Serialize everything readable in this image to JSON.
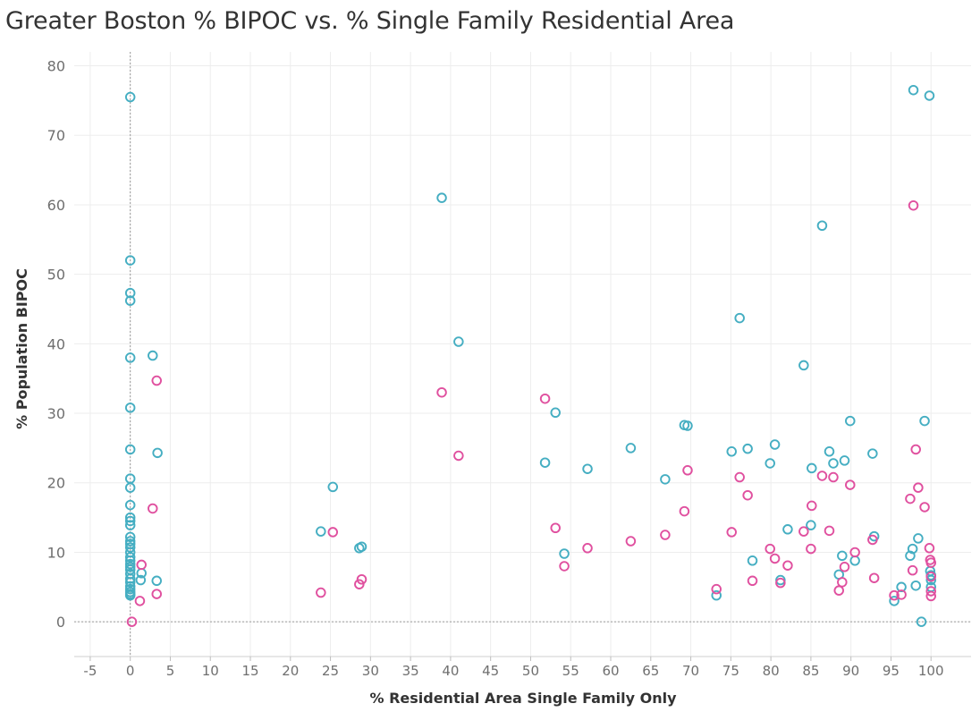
{
  "chart_data": {
    "type": "scatter",
    "title": "Greater Boston % BIPOC vs. % Single Family Residential Area",
    "xlabel": "% Residential Area Single Family Only",
    "ylabel": "% Population BIPOC",
    "xlim": [
      -7,
      105
    ],
    "ylim": [
      -5,
      82
    ],
    "xticks": [
      -5,
      0,
      5,
      10,
      15,
      20,
      25,
      30,
      35,
      40,
      45,
      50,
      55,
      60,
      65,
      70,
      75,
      80,
      85,
      90,
      95,
      100
    ],
    "yticks": [
      0,
      10,
      20,
      30,
      40,
      50,
      60,
      70,
      80
    ],
    "grid": true,
    "legend": "none",
    "series": [
      {
        "color": "#45aec2",
        "points": [
          [
            0,
            75.5
          ],
          [
            0,
            52
          ],
          [
            0,
            47.3
          ],
          [
            0,
            46.2
          ],
          [
            0,
            38
          ],
          [
            0,
            30.8
          ],
          [
            0,
            24.8
          ],
          [
            0,
            20.6
          ],
          [
            0,
            19.3
          ],
          [
            0,
            16.8
          ],
          [
            0,
            15
          ],
          [
            0,
            14.5
          ],
          [
            0,
            13.9
          ],
          [
            0,
            12.2
          ],
          [
            0,
            11.6
          ],
          [
            0,
            11.2
          ],
          [
            0,
            10.7
          ],
          [
            0,
            10
          ],
          [
            0,
            9.3
          ],
          [
            0,
            8.8
          ],
          [
            0,
            8.3
          ],
          [
            0,
            7.9
          ],
          [
            0,
            7.5
          ],
          [
            0,
            6.9
          ],
          [
            0,
            6.2
          ],
          [
            0,
            5.7
          ],
          [
            0,
            5.1
          ],
          [
            0,
            4.7
          ],
          [
            0,
            4.3
          ],
          [
            0,
            4
          ],
          [
            0,
            3.8
          ],
          [
            1.3,
            6
          ],
          [
            1.4,
            7
          ],
          [
            2.8,
            38.3
          ],
          [
            3.4,
            24.3
          ],
          [
            3.3,
            5.9
          ],
          [
            23.8,
            13
          ],
          [
            25.3,
            19.4
          ],
          [
            28.6,
            10.6
          ],
          [
            28.9,
            10.8
          ],
          [
            38.9,
            61
          ],
          [
            41,
            40.3
          ],
          [
            51.8,
            22.9
          ],
          [
            53.1,
            30.1
          ],
          [
            54.2,
            9.8
          ],
          [
            57.1,
            22
          ],
          [
            62.5,
            25
          ],
          [
            66.8,
            20.5
          ],
          [
            69.2,
            28.3
          ],
          [
            69.6,
            28.2
          ],
          [
            73.2,
            3.8
          ],
          [
            75.1,
            24.5
          ],
          [
            76.1,
            43.7
          ],
          [
            77.1,
            24.9
          ],
          [
            77.7,
            8.8
          ],
          [
            79.9,
            22.8
          ],
          [
            80.5,
            25.5
          ],
          [
            81.2,
            6
          ],
          [
            82.1,
            13.3
          ],
          [
            84.1,
            36.9
          ],
          [
            85,
            13.9
          ],
          [
            85.1,
            22.1
          ],
          [
            86.4,
            57
          ],
          [
            87.3,
            24.5
          ],
          [
            87.8,
            22.8
          ],
          [
            88.5,
            6.8
          ],
          [
            88.9,
            9.5
          ],
          [
            89.2,
            23.2
          ],
          [
            89.9,
            28.9
          ],
          [
            90.5,
            8.8
          ],
          [
            92.7,
            24.2
          ],
          [
            92.9,
            12.3
          ],
          [
            95.4,
            3
          ],
          [
            96.3,
            5
          ],
          [
            97.4,
            9.5
          ],
          [
            97.7,
            10.5
          ],
          [
            97.8,
            76.5
          ],
          [
            98.1,
            5.2
          ],
          [
            98.4,
            12
          ],
          [
            98.8,
            0
          ],
          [
            99.2,
            28.9
          ],
          [
            99.8,
            75.7
          ],
          [
            99.9,
            7.3
          ],
          [
            100,
            6.7
          ],
          [
            100,
            6
          ],
          [
            100,
            5
          ]
        ]
      },
      {
        "color": "#e0509f",
        "points": [
          [
            0.2,
            0
          ],
          [
            1.2,
            3
          ],
          [
            1.4,
            8.2
          ],
          [
            2.8,
            16.3
          ],
          [
            3.3,
            34.7
          ],
          [
            3.3,
            4
          ],
          [
            23.8,
            4.2
          ],
          [
            25.3,
            12.9
          ],
          [
            28.6,
            5.4
          ],
          [
            28.9,
            6.1
          ],
          [
            38.9,
            33
          ],
          [
            41,
            23.9
          ],
          [
            51.8,
            32.1
          ],
          [
            53.1,
            13.5
          ],
          [
            54.2,
            8
          ],
          [
            57.1,
            10.6
          ],
          [
            62.5,
            11.6
          ],
          [
            66.8,
            12.5
          ],
          [
            69.2,
            15.9
          ],
          [
            69.6,
            21.8
          ],
          [
            73.2,
            4.7
          ],
          [
            75.1,
            12.9
          ],
          [
            76.1,
            20.8
          ],
          [
            77.1,
            18.2
          ],
          [
            77.7,
            5.9
          ],
          [
            79.9,
            10.5
          ],
          [
            80.5,
            9.1
          ],
          [
            81.2,
            5.6
          ],
          [
            82.1,
            8.1
          ],
          [
            84.1,
            13
          ],
          [
            85,
            10.5
          ],
          [
            85.1,
            16.7
          ],
          [
            86.4,
            21
          ],
          [
            87.3,
            13.1
          ],
          [
            87.8,
            20.8
          ],
          [
            88.5,
            4.5
          ],
          [
            88.9,
            5.7
          ],
          [
            89.2,
            7.9
          ],
          [
            89.9,
            19.7
          ],
          [
            90.5,
            10
          ],
          [
            92.7,
            11.8
          ],
          [
            92.9,
            6.3
          ],
          [
            95.4,
            3.8
          ],
          [
            96.3,
            3.9
          ],
          [
            97.4,
            17.7
          ],
          [
            97.7,
            7.4
          ],
          [
            97.8,
            59.9
          ],
          [
            98.1,
            24.8
          ],
          [
            98.4,
            19.3
          ],
          [
            99.2,
            16.5
          ],
          [
            99.8,
            10.6
          ],
          [
            99.9,
            8.9
          ],
          [
            100,
            8.5
          ],
          [
            100,
            6.5
          ],
          [
            100,
            4.4
          ],
          [
            100,
            3.7
          ]
        ]
      }
    ]
  }
}
